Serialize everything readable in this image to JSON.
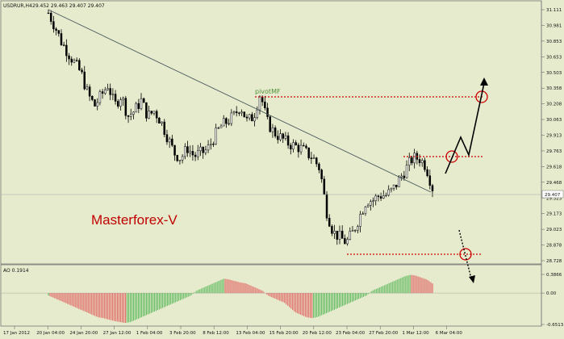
{
  "window": {
    "title_symbol": "USDRUR,H4",
    "title_values": "29.452 29.463 29.407 29.407",
    "brand_text": "Masterforex-V",
    "pivot_label": "pivotMF"
  },
  "colors": {
    "background": "#e7ebcd",
    "candle": "#000000",
    "trendline": "#4a5a60",
    "level_line": "#cc0000",
    "ao_up": "#5cb85c",
    "ao_down": "#e06060"
  },
  "price_axis": {
    "ticks": [
      "31.111",
      "30.981",
      "30.853",
      "30.653",
      "30.503",
      "30.358",
      "30.208",
      "30.063",
      "29.913",
      "29.763",
      "29.618",
      "29.468",
      "29.323",
      "29.173",
      "29.023",
      "28.878",
      "28.728"
    ],
    "current_price": "29.407"
  },
  "time_axis": {
    "labels": [
      "17 Jan 2012",
      "20 Jan 04:00",
      "24 Jan 20:00",
      "27 Jan 12:00",
      "1 Feb 04:00",
      "3 Feb 20:00",
      "8 Feb 12:00",
      "13 Feb 04:00",
      "15 Feb 20:00",
      "20 Feb 12:00",
      "23 Feb 04:00",
      "27 Feb 20:00",
      "1 Mar 12:00",
      "6 Mar 04:00"
    ]
  },
  "indicator": {
    "title": "AO 0.1914",
    "ticks": [
      "0.3866",
      "0.00",
      "-0.6513"
    ]
  },
  "chart_data": {
    "type": "candlestick",
    "ylim": [
      28.728,
      31.111
    ],
    "close_path": [
      31.08,
      30.95,
      30.8,
      30.7,
      30.6,
      30.5,
      30.3,
      30.2,
      30.3,
      30.4,
      30.2,
      30.3,
      30.1,
      30.15,
      30.25,
      30.1,
      30.15,
      30.05,
      29.9,
      29.75,
      29.7,
      29.8,
      29.72,
      29.75,
      29.78,
      29.9,
      30.0,
      30.05,
      30.1,
      30.2,
      30.05,
      30.1,
      30.32,
      30.05,
      29.95,
      29.9,
      29.85,
      29.82,
      29.8,
      29.75,
      29.7,
      29.6,
      29.2,
      29.0,
      28.95,
      28.9,
      29.0,
      29.15,
      29.3,
      29.3,
      29.35,
      29.35,
      29.4,
      29.5,
      29.6,
      29.7,
      29.7,
      29.63,
      29.42
    ],
    "levels": [
      {
        "label": "pivotMF",
        "value": 30.358
      },
      {
        "value": 29.763
      },
      {
        "value": 28.878
      }
    ],
    "ao_values": [
      -0.05,
      -0.1,
      -0.15,
      -0.2,
      -0.25,
      -0.3,
      -0.35,
      -0.4,
      -0.45,
      -0.5,
      -0.52,
      -0.55,
      -0.58,
      -0.6,
      -0.62,
      -0.6,
      -0.55,
      -0.5,
      -0.45,
      -0.4,
      -0.35,
      -0.3,
      -0.25,
      -0.2,
      -0.15,
      -0.1,
      -0.05,
      0.05,
      0.1,
      0.15,
      0.2,
      0.25,
      0.3,
      0.28,
      0.25,
      0.22,
      0.2,
      0.15,
      0.1,
      0.05,
      -0.05,
      -0.1,
      -0.15,
      -0.2,
      -0.3,
      -0.4,
      -0.45,
      -0.5,
      -0.52,
      -0.5,
      -0.45,
      -0.4,
      -0.35,
      -0.3,
      -0.25,
      -0.2,
      -0.15,
      -0.1,
      -0.05,
      0.05,
      0.1,
      0.15,
      0.2,
      0.25,
      0.3,
      0.35,
      0.38,
      0.36,
      0.32,
      0.28,
      0.2
    ]
  }
}
